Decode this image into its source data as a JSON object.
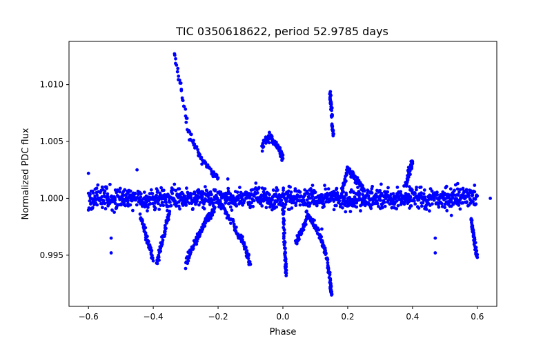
{
  "chart_data": {
    "type": "scatter",
    "title": "TIC 0350618622, period 52.9785 days",
    "xlabel": "Phase",
    "ylabel": "Normalized PDC flux",
    "xlim": [
      -0.66,
      0.66
    ],
    "ylim": [
      0.9905,
      1.0138
    ],
    "xticks": [
      -0.6,
      -0.4,
      -0.2,
      0.0,
      0.2,
      0.4,
      0.6
    ],
    "xtick_labels": [
      "−0.6",
      "−0.4",
      "−0.2",
      "0.0",
      "0.2",
      "0.4",
      "0.6"
    ],
    "yticks": [
      0.995,
      1.0,
      1.005,
      1.01
    ],
    "ytick_labels": [
      "0.995",
      "1.000",
      "1.005",
      "1.010"
    ],
    "marker_color": "#0000ff",
    "series": [
      {
        "name": "Baseline band",
        "x_range": [
          -0.6,
          0.6
        ],
        "y_center": 1.0,
        "scatter": 0.00045,
        "count": 1300
      },
      {
        "name": "Dip tracks",
        "segments": [
          {
            "x": [
              -0.335,
              -0.29,
              -0.25,
              -0.2
            ],
            "y": [
              1.0128,
              1.0058,
              1.0033,
              1.0018
            ]
          },
          {
            "x": [
              -0.3,
              -0.27,
              -0.24,
              -0.21
            ],
            "y": [
              0.9943,
              0.9962,
              0.9978,
              0.9992
            ]
          },
          {
            "x": [
              -0.2,
              -0.15,
              -0.12,
              -0.1
            ],
            "y": [
              0.9998,
              0.9975,
              0.996,
              0.9942
            ]
          },
          {
            "x": [
              -0.44,
              -0.42,
              -0.4
            ],
            "y": [
              0.9985,
              0.9965,
              0.9945
            ]
          },
          {
            "x": [
              -0.39,
              -0.37,
              -0.35
            ],
            "y": [
              0.9942,
              0.9965,
              0.9988
            ]
          },
          {
            "x": [
              0.0,
              0.005,
              0.01
            ],
            "y": [
              0.9995,
              0.996,
              0.9932
            ]
          },
          {
            "x": [
              0.08,
              0.11,
              0.13,
              0.145,
              0.15
            ],
            "y": [
              0.9985,
              0.997,
              0.9955,
              0.993,
              0.9915
            ]
          },
          {
            "x": [
              0.04,
              0.06,
              0.08
            ],
            "y": [
              0.9962,
              0.9972,
              0.9985
            ]
          },
          {
            "x": [
              0.145,
              0.15,
              0.155
            ],
            "y": [
              1.0093,
              1.0078,
              1.0055
            ]
          },
          {
            "x": [
              -0.065,
              -0.04,
              -0.015,
              0.0
            ],
            "y": [
              1.0045,
              1.0055,
              1.0045,
              1.0035
            ]
          },
          {
            "x": [
              0.38,
              0.39,
              0.4
            ],
            "y": [
              1.0012,
              1.0025,
              1.0032
            ]
          },
          {
            "x": [
              0.58,
              0.59,
              0.6
            ],
            "y": [
              0.998,
              0.9965,
              0.9948
            ]
          },
          {
            "x": [
              0.18,
              0.2,
              0.22,
              0.25
            ],
            "y": [
              1.0005,
              1.0025,
              1.0018,
              1.0008
            ]
          }
        ]
      },
      {
        "name": "Isolated points",
        "points": [
          {
            "x": -0.53,
            "y": 0.9965
          },
          {
            "x": -0.53,
            "y": 0.9952
          },
          {
            "x": -0.45,
            "y": 1.0025
          },
          {
            "x": 0.47,
            "y": 0.9965
          },
          {
            "x": 0.47,
            "y": 0.9952
          },
          {
            "x": 0.12,
            "y": 0.9973
          },
          {
            "x": 0.64,
            "y": 1.0
          },
          {
            "x": -0.6,
            "y": 1.0022
          },
          {
            "x": 0.52,
            "y": 0.9985
          },
          {
            "x": -0.17,
            "y": 1.0017
          }
        ]
      }
    ]
  }
}
